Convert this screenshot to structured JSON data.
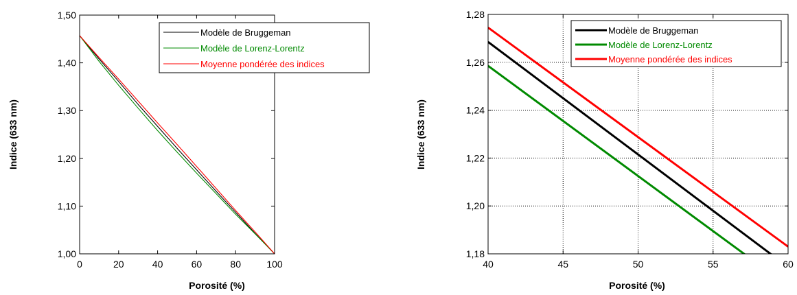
{
  "chart_data": [
    {
      "type": "line",
      "title": "",
      "xlabel": "Porosité (%)",
      "ylabel": "Indice (633 nm)",
      "xlim": [
        0,
        100
      ],
      "ylim": [
        1.0,
        1.5
      ],
      "grid": false,
      "legend_position": "top-right",
      "x_ticks": [
        "0",
        "20",
        "40",
        "60",
        "80",
        "100"
      ],
      "y_ticks": [
        "1,00",
        "1,10",
        "1,20",
        "1,30",
        "1,40",
        "1,50"
      ],
      "series": [
        {
          "name": "Modèle de Bruggeman",
          "color": "#000000",
          "x": [
            0,
            10,
            20,
            30,
            40,
            50,
            60,
            70,
            80,
            90,
            100
          ],
          "y": [
            1.457,
            1.408,
            1.361,
            1.313,
            1.267,
            1.221,
            1.176,
            1.131,
            1.087,
            1.043,
            1.0
          ]
        },
        {
          "name": "Modèle de Lorenz-Lorentz",
          "color": "#008a00",
          "x": [
            0,
            10,
            20,
            30,
            40,
            50,
            60,
            70,
            80,
            90,
            100
          ],
          "y": [
            1.457,
            1.403,
            1.353,
            1.305,
            1.258,
            1.213,
            1.169,
            1.126,
            1.083,
            1.042,
            1.0
          ]
        },
        {
          "name": "Moyenne pondérée des indices",
          "color": "#ff0000",
          "x": [
            0,
            10,
            20,
            30,
            40,
            50,
            60,
            70,
            80,
            90,
            100
          ],
          "y": [
            1.457,
            1.411,
            1.366,
            1.32,
            1.274,
            1.229,
            1.183,
            1.137,
            1.091,
            1.046,
            1.0
          ]
        }
      ]
    },
    {
      "type": "line",
      "title": "",
      "xlabel": "Porosité (%)",
      "ylabel": "Indice (633 nm)",
      "xlim": [
        40,
        60
      ],
      "ylim": [
        1.18,
        1.28
      ],
      "grid": true,
      "legend_position": "top-right",
      "x_ticks": [
        "40",
        "45",
        "50",
        "55",
        "60"
      ],
      "y_ticks": [
        "1,18",
        "1,20",
        "1,22",
        "1,24",
        "1,26",
        "1,28"
      ],
      "series": [
        {
          "name": "Modèle de Bruggeman",
          "color": "#000000",
          "x": [
            40,
            60
          ],
          "y": [
            1.2685,
            1.1745
          ]
        },
        {
          "name": "Modèle de Lorenz-Lorentz",
          "color": "#008a00",
          "x": [
            40,
            60
          ],
          "y": [
            1.2585,
            1.1665
          ]
        },
        {
          "name": "Moyenne pondérée des indices",
          "color": "#ff0000",
          "x": [
            40,
            60
          ],
          "y": [
            1.2745,
            1.183
          ]
        }
      ]
    }
  ]
}
